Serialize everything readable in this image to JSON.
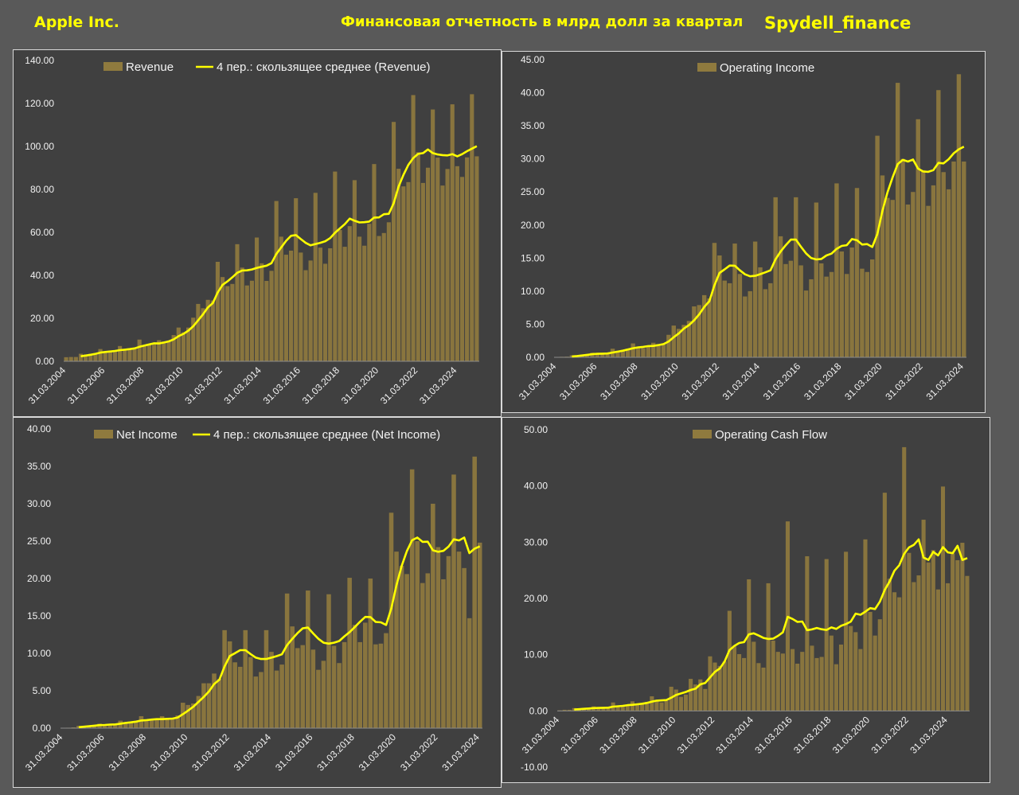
{
  "header": {
    "company": "Apple Inc.",
    "title": "Финансовая отчетность в млрд долл за квартал",
    "author": "Spydell_finance"
  },
  "colors": {
    "background": "#595959",
    "panel": "#404040",
    "bar": "#8f7a3e",
    "line": "#ffff00",
    "text": "#f2f2f2"
  },
  "chart_data": [
    {
      "type": "bar",
      "id": "revenue",
      "ylim": [
        0,
        140
      ],
      "yticks": [
        "0.00",
        "20.00",
        "40.00",
        "60.00",
        "80.00",
        "100.00",
        "120.00",
        "140.00"
      ],
      "xtick_labels": [
        "31.03.2004",
        "31.03.2006",
        "31.03.2008",
        "31.03.2010",
        "31.03.2012",
        "31.03.2014",
        "31.03.2016",
        "31.03.2018",
        "31.03.2020",
        "31.03.2022",
        "31.03.2024"
      ],
      "legend": [
        "Revenue",
        "4 пер.: скользящее среднее (Revenue)"
      ],
      "series": [
        {
          "name": "Revenue",
          "values": [
            1.9,
            2.0,
            2.0,
            3.5,
            3.2,
            3.5,
            3.7,
            5.7,
            4.4,
            4.4,
            4.8,
            7.1,
            5.3,
            5.4,
            6.2,
            10.1,
            7.5,
            7.6,
            8.3,
            9.8,
            9.2,
            9.7,
            12.2,
            15.7,
            13.5,
            15.7,
            20.3,
            26.7,
            24.7,
            28.6,
            28.3,
            46.3,
            39.2,
            35.0,
            36.0,
            54.5,
            43.6,
            35.3,
            37.5,
            57.6,
            45.6,
            37.4,
            42.1,
            74.6,
            58.0,
            49.6,
            51.5,
            75.9,
            50.6,
            42.4,
            46.9,
            78.4,
            52.9,
            45.4,
            52.6,
            88.3,
            61.1,
            53.3,
            62.9,
            84.3,
            58.0,
            53.8,
            64.0,
            91.8,
            58.3,
            59.7,
            64.7,
            111.4,
            89.6,
            81.4,
            83.4,
            123.9,
            97.3,
            83.0,
            90.1,
            117.2,
            94.8,
            81.8,
            89.5,
            119.6,
            90.8,
            85.8,
            94.9,
            124.3,
            95.4
          ]
        }
      ]
    },
    {
      "type": "bar",
      "id": "operating_income",
      "ylim": [
        0,
        45
      ],
      "yticks": [
        "0.00",
        "5.00",
        "10.00",
        "15.00",
        "20.00",
        "25.00",
        "30.00",
        "35.00",
        "40.00",
        "45.00"
      ],
      "xtick_labels": [
        "31.03.2004",
        "31.03.2006",
        "31.03.2008",
        "31.03.2010",
        "31.03.2012",
        "31.03.2014",
        "31.03.2016",
        "31.03.2018",
        "31.03.2020",
        "31.03.2022",
        "31.03.2024"
      ],
      "legend": [
        "Operating Income"
      ],
      "series": [
        {
          "name": "Operating Income",
          "values": [
            0.06,
            0.08,
            0.1,
            0.3,
            0.3,
            0.4,
            0.5,
            0.7,
            0.5,
            0.5,
            0.6,
            1.3,
            1.0,
            1.1,
            1.3,
            2.1,
            1.5,
            1.4,
            1.8,
            2.2,
            2.0,
            2.0,
            3.4,
            4.8,
            4.3,
            4.9,
            5.5,
            7.7,
            7.9,
            9.4,
            8.9,
            17.3,
            15.4,
            11.6,
            11.2,
            17.2,
            12.6,
            9.2,
            10.0,
            17.5,
            13.6,
            10.3,
            11.2,
            24.2,
            18.3,
            14.1,
            14.6,
            24.2,
            13.9,
            10.1,
            11.8,
            23.4,
            14.2,
            12.2,
            12.9,
            26.3,
            16.0,
            12.6,
            16.6,
            25.6,
            13.4,
            12.9,
            14.8,
            33.5,
            27.5,
            24.1,
            23.8,
            41.5,
            30.0,
            23.1,
            25.0,
            36.0,
            28.3,
            22.9,
            26.0,
            40.4,
            28.0,
            25.4,
            29.6,
            42.8,
            29.6
          ]
        }
      ]
    },
    {
      "type": "bar",
      "id": "net_income",
      "ylim": [
        0,
        40
      ],
      "yticks": [
        "0.00",
        "5.00",
        "10.00",
        "15.00",
        "20.00",
        "25.00",
        "30.00",
        "35.00",
        "40.00"
      ],
      "xtick_labels": [
        "31.03.2004",
        "31.03.2006",
        "31.03.2008",
        "31.03.2010",
        "31.03.2012",
        "31.03.2014",
        "31.03.2016",
        "31.03.2018",
        "31.03.2020",
        "31.03.2022",
        "31.03.2024"
      ],
      "legend": [
        "Net Income",
        "4 пер.: скользящее среднее (Net Income)"
      ],
      "series": [
        {
          "name": "Net Income",
          "values": [
            0.05,
            0.06,
            0.1,
            0.3,
            0.3,
            0.3,
            0.4,
            0.6,
            0.4,
            0.5,
            0.5,
            1.0,
            0.8,
            0.8,
            0.9,
            1.6,
            1.0,
            1.1,
            1.1,
            1.6,
            1.2,
            1.2,
            1.7,
            3.4,
            3.1,
            3.3,
            4.3,
            6.0,
            6.0,
            7.3,
            6.6,
            13.1,
            11.6,
            8.8,
            8.2,
            13.1,
            9.5,
            6.9,
            7.5,
            13.1,
            10.2,
            7.7,
            8.5,
            18.0,
            13.6,
            10.7,
            11.1,
            18.4,
            10.5,
            7.8,
            9.0,
            17.9,
            11.0,
            8.7,
            11.5,
            20.1,
            13.8,
            11.5,
            14.1,
            20.0,
            11.2,
            11.3,
            12.7,
            28.8,
            23.6,
            21.7,
            20.6,
            34.6,
            25.0,
            19.4,
            20.7,
            30.0,
            24.2,
            19.9,
            23.0,
            33.9,
            23.6,
            21.4,
            14.7,
            36.3,
            24.8
          ]
        }
      ]
    },
    {
      "type": "bar",
      "id": "operating_cash_flow",
      "ylim": [
        -10,
        50
      ],
      "yticks": [
        "-10.00",
        "0.00",
        "10.00",
        "20.00",
        "30.00",
        "40.00",
        "50.00"
      ],
      "xtick_labels": [
        "31.03.2004",
        "31.03.2006",
        "31.03.2008",
        "31.03.2010",
        "31.03.2012",
        "31.03.2014",
        "31.03.2016",
        "31.03.2018",
        "31.03.2020",
        "31.03.2022",
        "31.03.2024"
      ],
      "legend": [
        "Operating Cash Flow"
      ],
      "series": [
        {
          "name": "Operating Cash Flow",
          "values": [
            0.1,
            0.2,
            0.2,
            0.5,
            0.3,
            0.5,
            0.4,
            0.8,
            0.4,
            0.6,
            0.5,
            1.5,
            0.7,
            0.9,
            1.0,
            1.7,
            1.1,
            1.3,
            1.6,
            2.6,
            1.8,
            1.5,
            1.8,
            4.3,
            3.8,
            2.5,
            2.9,
            5.7,
            4.7,
            5.6,
            3.9,
            9.7,
            8.6,
            8.0,
            8.8,
            17.8,
            11.6,
            10.1,
            9.4,
            23.4,
            12.3,
            8.5,
            7.7,
            22.7,
            12.5,
            10.5,
            10.2,
            33.7,
            11.0,
            8.4,
            10.5,
            27.5,
            11.6,
            9.4,
            9.6,
            27.0,
            13.4,
            8.3,
            11.8,
            28.3,
            15.1,
            14.0,
            11.0,
            30.5,
            17.6,
            13.4,
            16.3,
            38.8,
            23.5,
            21.1,
            20.2,
            46.9,
            28.1,
            22.9,
            24.1,
            34.0,
            26.4,
            28.6,
            21.6,
            39.9,
            22.7,
            28.0,
            26.8,
            29.9,
            24.0
          ]
        }
      ]
    }
  ]
}
